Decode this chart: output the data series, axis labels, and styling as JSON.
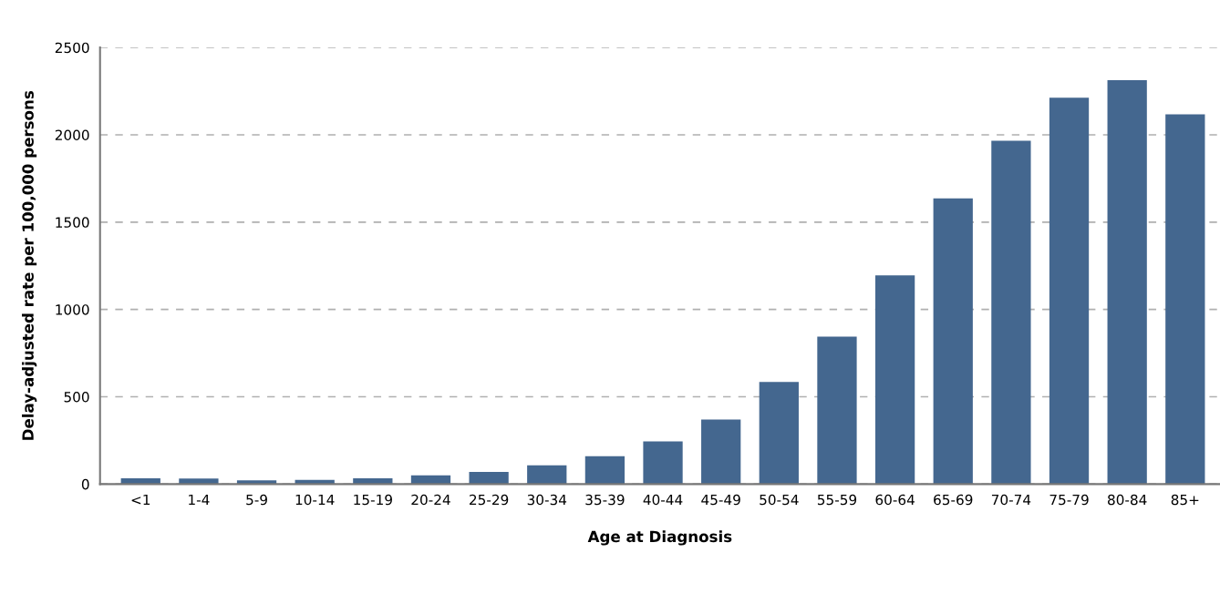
{
  "chart_data": {
    "type": "bar",
    "xlabel": "Age at Diagnosis",
    "ylabel": "Delay-adjusted rate per 100,000 persons",
    "categories": [
      "<1",
      "1-4",
      "5-9",
      "10-14",
      "15-19",
      "20-24",
      "25-29",
      "30-34",
      "35-39",
      "40-44",
      "45-49",
      "50-54",
      "55-59",
      "60-64",
      "65-69",
      "70-74",
      "75-79",
      "80-84",
      "85+"
    ],
    "values": [
      33,
      32,
      21,
      24,
      33,
      50,
      70,
      108,
      160,
      245,
      370,
      585,
      845,
      1195,
      1636,
      1966,
      2212,
      2313,
      2118
    ],
    "color": "#44678f",
    "ylim": [
      0,
      2500
    ],
    "yticks": [
      0,
      500,
      1000,
      1500,
      2000,
      2500
    ],
    "grid": "y"
  }
}
